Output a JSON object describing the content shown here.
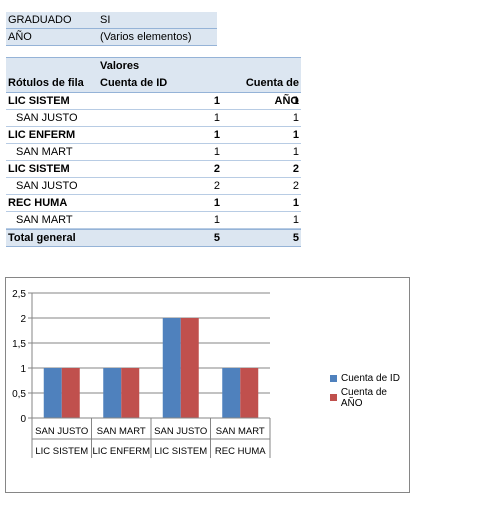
{
  "filters": [
    {
      "label": "GRADUADO",
      "value": "SI"
    },
    {
      "label": "AÑO",
      "value": "(Varios elementos)"
    }
  ],
  "pivot": {
    "values_label": "Valores",
    "row_header": "Rótulos de fila",
    "col1_header": "Cuenta de ID",
    "col2_header": "Cuenta de AÑO",
    "rows": [
      {
        "label": "LIC  SISTEM",
        "id": "1",
        "anio": "1",
        "level": 0
      },
      {
        "label": "SAN JUSTO",
        "id": "1",
        "anio": "1",
        "level": 1
      },
      {
        "label": "LIC ENFERM",
        "id": "1",
        "anio": "1",
        "level": 0
      },
      {
        "label": "SAN MART",
        "id": "1",
        "anio": "1",
        "level": 1
      },
      {
        "label": "LIC SISTEM",
        "id": "2",
        "anio": "2",
        "level": 0
      },
      {
        "label": "SAN JUSTO",
        "id": "2",
        "anio": "2",
        "level": 1
      },
      {
        "label": "REC HUMA",
        "id": "1",
        "anio": "1",
        "level": 0
      },
      {
        "label": "SAN MART",
        "id": "1",
        "anio": "1",
        "level": 1
      }
    ],
    "total": {
      "label": "Total general",
      "id": "5",
      "anio": "5"
    }
  },
  "chart_data": {
    "type": "bar",
    "categories": [
      {
        "inner": "SAN JUSTO",
        "outer": "LIC  SISTEM"
      },
      {
        "inner": "SAN MART",
        "outer": "LIC ENFERM"
      },
      {
        "inner": "SAN JUSTO",
        "outer": "LIC SISTEM"
      },
      {
        "inner": "SAN MART",
        "outer": "REC HUMA"
      }
    ],
    "series": [
      {
        "name": "Cuenta de ID",
        "values": [
          1,
          1,
          2,
          1
        ],
        "color": "#4f81bd"
      },
      {
        "name": "Cuenta de AÑO",
        "values": [
          1,
          1,
          2,
          1
        ],
        "color": "#c0504d"
      }
    ],
    "yticks": [
      "0",
      "0,5",
      "1",
      "1,5",
      "2",
      "2,5"
    ],
    "ylim": [
      0,
      2.5
    ],
    "grid": true,
    "legend": "right"
  }
}
